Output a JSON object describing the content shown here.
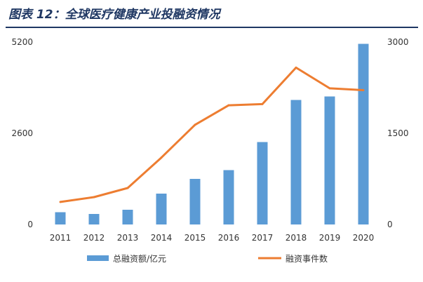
{
  "title": "图表 12：全球医疗健康产业投融资情况",
  "chart_data": {
    "type": "bar",
    "categories": [
      "2011",
      "2012",
      "2013",
      "2014",
      "2015",
      "2016",
      "2017",
      "2018",
      "2019",
      "2020"
    ],
    "series": [
      {
        "name": "总融资额/亿元",
        "kind": "bar",
        "axis": "left",
        "values": [
          350,
          300,
          420,
          880,
          1300,
          1550,
          2350,
          3550,
          3650,
          5150
        ]
      },
      {
        "name": "融资事件数",
        "kind": "line",
        "axis": "right",
        "values": [
          370,
          450,
          600,
          1100,
          1640,
          1960,
          1980,
          2580,
          2240,
          2210
        ]
      }
    ],
    "y_left": {
      "ticks": [
        0,
        2600,
        5200
      ],
      "ylim": [
        0,
        5200
      ]
    },
    "y_right": {
      "ticks": [
        0,
        1500,
        3000
      ],
      "ylim": [
        0,
        3000
      ]
    },
    "legend_position": "bottom",
    "grid": false,
    "colors": {
      "bar": "#5b9bd5",
      "line": "#ed7d31",
      "text": "#333333",
      "title": "#1f3763"
    }
  }
}
